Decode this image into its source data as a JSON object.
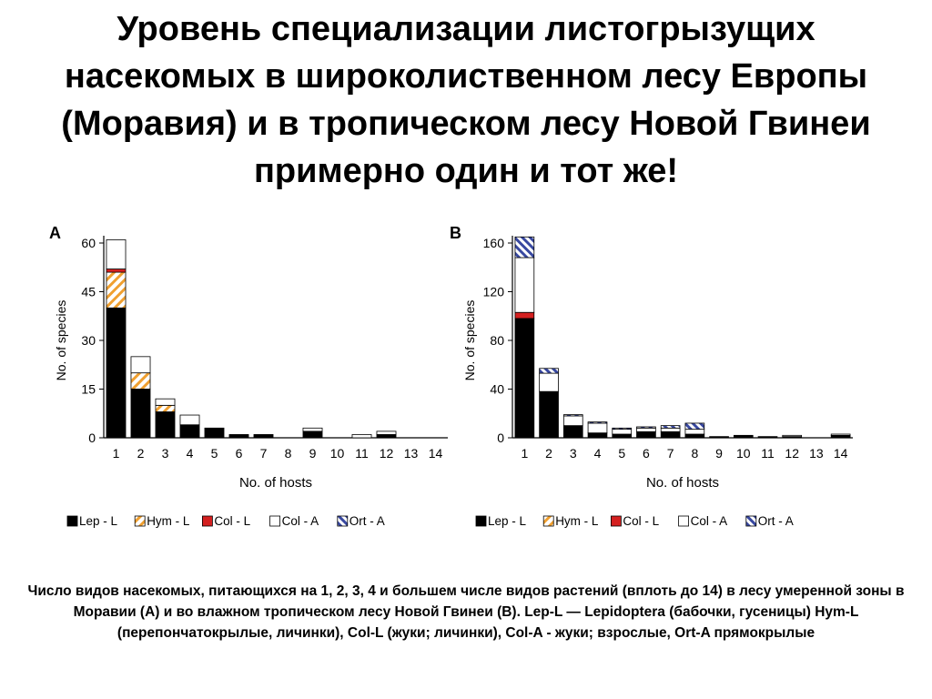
{
  "title": "Уровень специализации листогрызущих насекомых в широколиственном лесу Европы (Моравия) и в тропическом лесу Новой Гвинеи примерно один и тот же!",
  "caption": "Число видов насекомых, питающихся на 1, 2, 3, 4 и большем числе видов растений (вплоть до 14) в лесу умеренной зоны в Моравии (A) и во влажном тропическом лесу Новой Гвинеи (B). Lep-L — Lepidoptera (бабочки, гусеницы) Hym-L (перепончатокрылые, личинки), Col-L (жуки; личинки), Col-A - жуки; взрослые, Ort-A прямокрылые",
  "colors": {
    "lep": "#000000",
    "hym": "#f0a030",
    "col_l": "#d42020",
    "col_a": "#ffffff",
    "ort": "#3848a0"
  },
  "chart_data": [
    {
      "type": "bar",
      "stacked": true,
      "panel_label": "A",
      "xlabel": "No. of hosts",
      "ylabel": "No. of species",
      "ylim": [
        0,
        60
      ],
      "yticks": [
        0,
        15,
        30,
        45,
        60
      ],
      "categories": [
        "1",
        "2",
        "3",
        "4",
        "5",
        "6",
        "7",
        "8",
        "9",
        "10",
        "11",
        "12",
        "13",
        "14"
      ],
      "series": [
        {
          "name": "Lep - L",
          "values": [
            40,
            15,
            8,
            4,
            3,
            1,
            1,
            0,
            2,
            0,
            0,
            1,
            0,
            0
          ]
        },
        {
          "name": "Hym - L",
          "values": [
            11,
            5,
            2,
            0,
            0,
            0,
            0,
            0,
            0,
            0,
            0,
            0,
            0,
            0
          ]
        },
        {
          "name": "Col - L",
          "values": [
            1,
            0,
            0,
            0,
            0,
            0,
            0,
            0,
            0,
            0,
            0,
            0,
            0,
            0
          ]
        },
        {
          "name": "Col - A",
          "values": [
            9,
            5,
            2,
            3,
            0,
            0,
            0,
            0,
            1,
            0,
            1,
            1,
            0,
            0
          ]
        },
        {
          "name": "Ort - A",
          "values": [
            0,
            0,
            0,
            0,
            0,
            0,
            0,
            0,
            0,
            0,
            0,
            0,
            0,
            0
          ]
        }
      ],
      "legend_position": "bottom"
    },
    {
      "type": "bar",
      "stacked": true,
      "panel_label": "B",
      "xlabel": "No. of hosts",
      "ylabel": "No. of species",
      "ylim": [
        0,
        160
      ],
      "yticks": [
        0,
        40,
        80,
        120,
        160
      ],
      "categories": [
        "1",
        "2",
        "3",
        "4",
        "5",
        "6",
        "7",
        "8",
        "9",
        "10",
        "11",
        "12",
        "13",
        "14"
      ],
      "series": [
        {
          "name": "Lep - L",
          "values": [
            98,
            38,
            10,
            4,
            3,
            5,
            5,
            3,
            1,
            2,
            1,
            1,
            0,
            2
          ]
        },
        {
          "name": "Hym - L",
          "values": [
            0,
            0,
            0,
            0,
            0,
            0,
            0,
            0,
            0,
            0,
            0,
            0,
            0,
            0
          ]
        },
        {
          "name": "Col - L",
          "values": [
            5,
            0,
            0,
            0,
            0,
            0,
            0,
            0,
            0,
            0,
            0,
            0,
            0,
            0
          ]
        },
        {
          "name": "Col - A",
          "values": [
            45,
            15,
            8,
            8,
            4,
            3,
            3,
            4,
            0,
            0,
            0,
            1,
            0,
            1
          ]
        },
        {
          "name": "Ort - A",
          "values": [
            17,
            4,
            1,
            1,
            1,
            1,
            2,
            5,
            0,
            0,
            0,
            0,
            0,
            0
          ]
        }
      ],
      "legend_position": "bottom"
    }
  ]
}
